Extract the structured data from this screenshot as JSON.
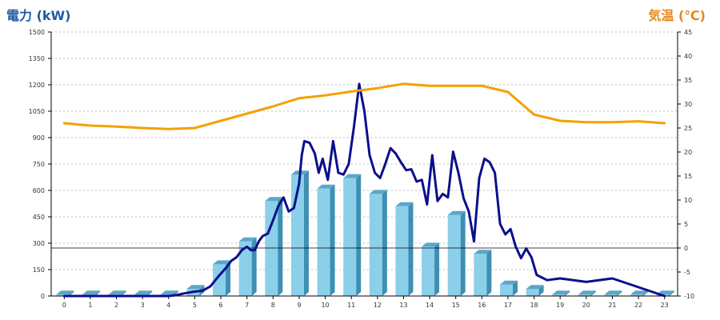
{
  "colors": {
    "power_axis_title": "#1f5aa6",
    "temp_axis_title": "#e8861c",
    "bar_front": "#8ccfe9",
    "bar_side": "#3d8fb3",
    "bar_top": "#5aa7c8",
    "power_line": "#0b0f8c",
    "temp_line": "#f5a000"
  },
  "chart_data": {
    "type": "bar",
    "title": "",
    "ylabel": "電力 (kW)",
    "y2label": "気温 (℃)",
    "xlabel": "",
    "categories": [
      "0",
      "1",
      "2",
      "3",
      "4",
      "5",
      "6",
      "7",
      "8",
      "9",
      "10",
      "11",
      "12",
      "13",
      "14",
      "15",
      "16",
      "17",
      "18",
      "19",
      "20",
      "21",
      "22",
      "23"
    ],
    "ylim": [
      0,
      1500
    ],
    "y_ticks": [
      0,
      150,
      300,
      450,
      600,
      750,
      900,
      1050,
      1200,
      1350,
      1500
    ],
    "y2lim": [
      -10,
      45
    ],
    "y2_ticks": [
      -10,
      -5,
      0,
      5,
      10,
      15,
      20,
      25,
      30,
      35,
      40,
      45
    ],
    "grid": true,
    "reference_line": {
      "axis": "y2",
      "value": 0
    },
    "series": [
      {
        "kind": "bar",
        "axis": "y",
        "values": [
          8,
          8,
          8,
          8,
          8,
          40,
          180,
          310,
          540,
          690,
          610,
          670,
          580,
          510,
          280,
          460,
          240,
          65,
          40,
          8,
          8,
          8,
          8,
          8
        ]
      },
      {
        "kind": "line",
        "axis": "y",
        "x": [
          0,
          1,
          2,
          3,
          4,
          4.3,
          4.6,
          5,
          5.3,
          5.6,
          5.9,
          6.2,
          6.4,
          6.6,
          6.8,
          7,
          7.15,
          7.3,
          7.45,
          7.6,
          7.8,
          8,
          8.2,
          8.4,
          8.6,
          8.8,
          9,
          9.1,
          9.2,
          9.4,
          9.6,
          9.75,
          9.9,
          10.1,
          10.3,
          10.5,
          10.7,
          10.9,
          11.1,
          11.3,
          11.5,
          11.7,
          11.9,
          12.1,
          12.3,
          12.5,
          12.7,
          12.9,
          13.1,
          13.3,
          13.5,
          13.7,
          13.9,
          14.1,
          14.3,
          14.5,
          14.7,
          14.9,
          15.1,
          15.3,
          15.5,
          15.7,
          15.9,
          16.1,
          16.3,
          16.5,
          16.7,
          16.9,
          17.1,
          17.3,
          17.5,
          17.7,
          17.9,
          18.1,
          18.5,
          19,
          20,
          21,
          22,
          23
        ],
        "values": [
          0,
          0,
          0,
          0,
          0,
          5,
          15,
          25,
          30,
          55,
          110,
          160,
          200,
          220,
          260,
          280,
          260,
          260,
          310,
          340,
          355,
          430,
          510,
          560,
          480,
          500,
          640,
          800,
          880,
          870,
          810,
          700,
          780,
          660,
          880,
          700,
          690,
          750,
          960,
          1205,
          1050,
          800,
          700,
          670,
          750,
          840,
          810,
          760,
          715,
          720,
          650,
          660,
          520,
          800,
          540,
          580,
          560,
          820,
          700,
          555,
          480,
          310,
          670,
          780,
          760,
          700,
          410,
          350,
          380,
          280,
          215,
          270,
          220,
          120,
          90,
          100,
          80,
          100,
          50,
          0
        ]
      },
      {
        "kind": "line",
        "axis": "y2",
        "values": [
          26,
          25.5,
          25.3,
          25,
          24.8,
          25,
          26.5,
          28,
          29.5,
          31.2,
          31.8,
          32.6,
          33.3,
          34.2,
          33.8,
          33.8,
          33.8,
          32.5,
          27.8,
          26.5,
          26.2,
          26.2,
          26.4,
          26
        ]
      }
    ]
  }
}
